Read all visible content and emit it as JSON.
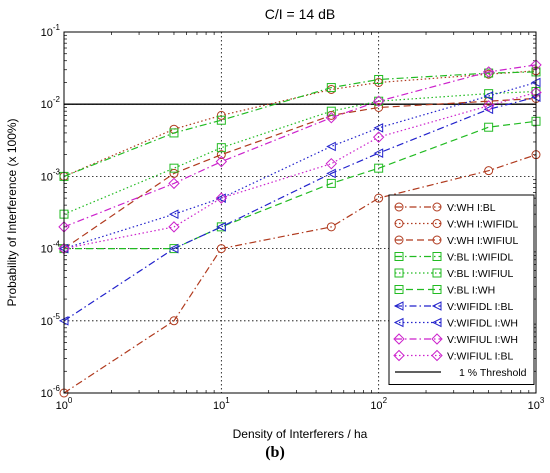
{
  "caption": "(b)",
  "chart_data": {
    "type": "line",
    "title": "C/I = 14 dB",
    "xlabel": "Density of Interferers / ha",
    "ylabel": "Probability of Interference (x 100%)",
    "xscale": "log",
    "yscale": "log",
    "xlim": [
      1,
      1000
    ],
    "ylim": [
      1e-06,
      0.1
    ],
    "x_ticks": [
      {
        "value": 1,
        "base": "10",
        "exp": "0"
      },
      {
        "value": 10,
        "base": "10",
        "exp": "1"
      },
      {
        "value": 100,
        "base": "10",
        "exp": "2"
      },
      {
        "value": 1000,
        "base": "10",
        "exp": "3"
      }
    ],
    "y_ticks": [
      {
        "value": 1e-06,
        "base": "10",
        "exp": "-6"
      },
      {
        "value": 1e-05,
        "base": "10",
        "exp": "-5"
      },
      {
        "value": 0.0001,
        "base": "10",
        "exp": "-4"
      },
      {
        "value": 0.001,
        "base": "10",
        "exp": "-3"
      },
      {
        "value": 0.01,
        "base": "10",
        "exp": "-2"
      },
      {
        "value": 0.1,
        "base": "10",
        "exp": "-1"
      }
    ],
    "grid": true,
    "legend_position": "bottom-right",
    "threshold": {
      "name": "1 % Threshold",
      "value": 0.01,
      "color": "#000000"
    },
    "x": [
      1,
      5,
      10,
      50,
      100,
      500,
      1000
    ],
    "series": [
      {
        "name": "V:WH I:BL",
        "color": "#b03a1e",
        "marker": "circle",
        "dash": "dashdot",
        "values": [
          1e-06,
          1e-05,
          0.0001,
          0.0002,
          0.0005,
          0.0012,
          0.002
        ]
      },
      {
        "name": "V:WH I:WIFIDL",
        "color": "#b03a1e",
        "marker": "circle",
        "dash": "dotted",
        "values": [
          0.001,
          0.0045,
          0.007,
          0.016,
          0.02,
          0.026,
          0.029
        ]
      },
      {
        "name": "V:WH I:WIFIUL",
        "color": "#b03a1e",
        "marker": "circle",
        "dash": "dashed",
        "values": [
          0.0001,
          0.0011,
          0.002,
          0.007,
          0.009,
          0.011,
          0.012
        ]
      },
      {
        "name": "V:BL I:WIFIDL",
        "color": "#22bb22",
        "marker": "square",
        "dash": "dashdot",
        "values": [
          0.001,
          0.004,
          0.006,
          0.017,
          0.022,
          0.027,
          0.028
        ]
      },
      {
        "name": "V:BL I:WIFIUL",
        "color": "#22bb22",
        "marker": "square",
        "dash": "dotted",
        "values": [
          0.0003,
          0.0013,
          0.0025,
          0.008,
          0.011,
          0.014,
          0.015
        ]
      },
      {
        "name": "V:BL I:WH",
        "color": "#22bb22",
        "marker": "square",
        "dash": "dashed",
        "values": [
          0.0001,
          0.0001,
          0.0002,
          0.0008,
          0.0013,
          0.0048,
          0.0058
        ]
      },
      {
        "name": "V:WIFIDL I:BL",
        "color": "#2222cc",
        "marker": "triangle-left",
        "dash": "dashdot",
        "values": [
          1e-05,
          0.0001,
          0.0002,
          0.0011,
          0.0021,
          0.0085,
          0.0125
        ]
      },
      {
        "name": "V:WIFIDL I:WH",
        "color": "#2222cc",
        "marker": "triangle-left",
        "dash": "dotted",
        "values": [
          0.0001,
          0.0003,
          0.0005,
          0.0026,
          0.0047,
          0.013,
          0.02
        ]
      },
      {
        "name": "V:WIFIUL I:WH",
        "color": "#cc22cc",
        "marker": "diamond",
        "dash": "dashdot",
        "values": [
          0.0002,
          0.0008,
          0.0016,
          0.0065,
          0.011,
          0.028,
          0.035
        ]
      },
      {
        "name": "V:WIFIUL I:BL",
        "color": "#cc22cc",
        "marker": "diamond",
        "dash": "dotted",
        "values": [
          0.0001,
          0.0002,
          0.0005,
          0.0015,
          0.0035,
          0.0095,
          0.0145
        ]
      }
    ]
  }
}
